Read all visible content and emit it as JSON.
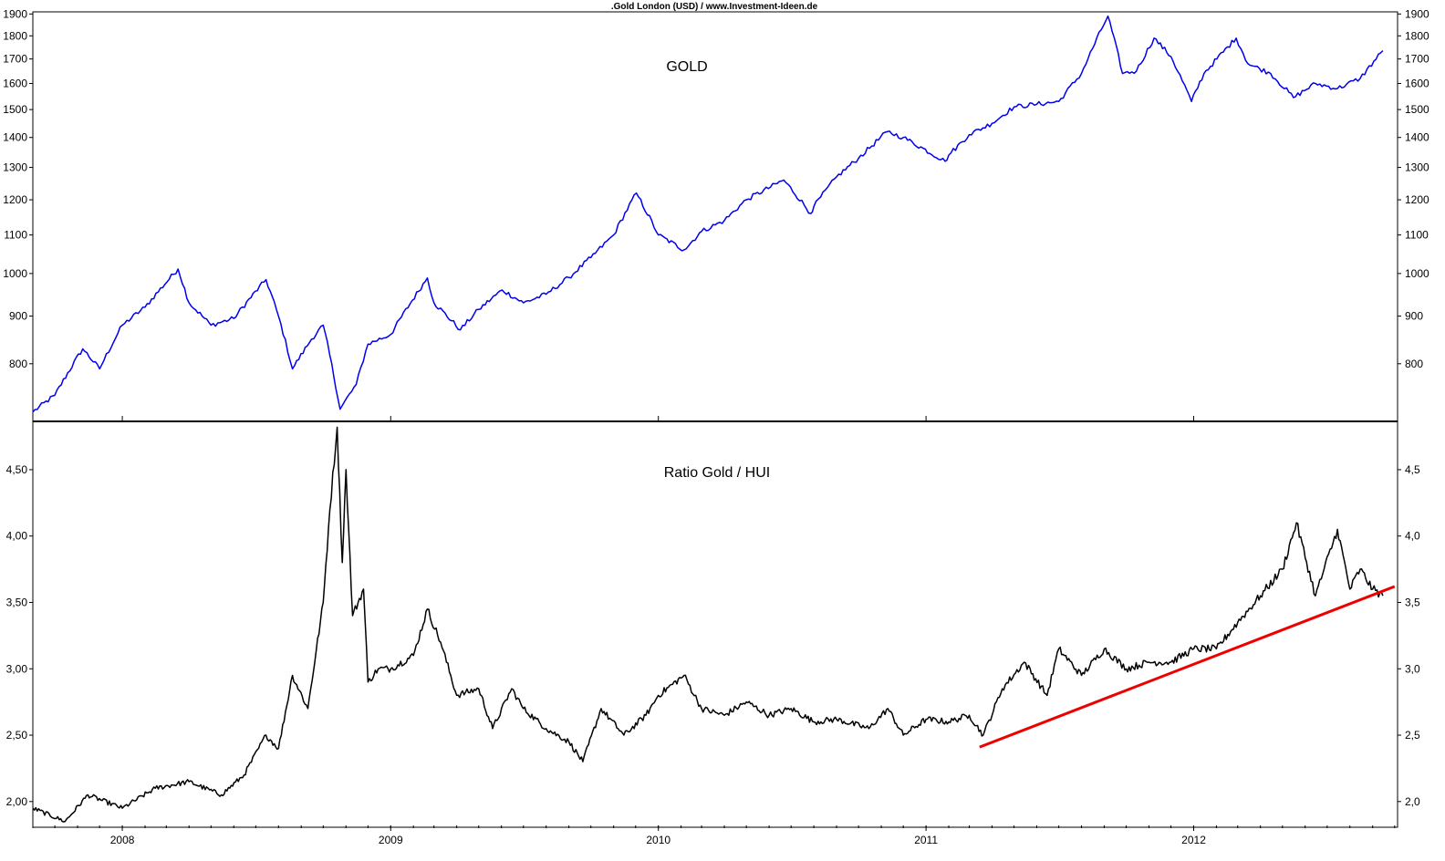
{
  "header": {
    "title": ".Gold London (USD) / www.Investment-Ideen.de"
  },
  "chart_data": [
    {
      "type": "line",
      "title": "GOLD",
      "y_scale": "log",
      "ylim": [
        700,
        1910
      ],
      "y_ticks": [
        "800",
        "900",
        "1000",
        "1100",
        "1200",
        "1300",
        "1400",
        "1500",
        "1600",
        "1700",
        "1800",
        "1900"
      ],
      "y_tick_values": [
        800,
        900,
        1000,
        1100,
        1200,
        1300,
        1400,
        1500,
        1600,
        1700,
        1800,
        1900
      ],
      "colors": {
        "series": "#0000ee"
      },
      "series": [
        {
          "x": [
            "2007-09-01",
            "2007-10-01",
            "2007-11-08",
            "2007-12-01",
            "2008-01-01",
            "2008-02-01",
            "2008-03-17",
            "2008-04-01",
            "2008-05-01",
            "2008-06-01",
            "2008-07-15",
            "2008-08-01",
            "2008-08-20",
            "2008-09-15",
            "2008-10-01",
            "2008-10-24",
            "2008-11-15",
            "2008-12-01",
            "2009-01-01",
            "2009-02-20",
            "2009-03-01",
            "2009-04-06",
            "2009-05-01",
            "2009-06-02",
            "2009-07-01",
            "2009-08-01",
            "2009-09-01",
            "2009-10-01",
            "2009-11-01",
            "2009-12-02",
            "2010-01-01",
            "2010-02-05",
            "2010-03-01",
            "2010-04-01",
            "2010-05-01",
            "2010-06-21",
            "2010-07-28",
            "2010-08-01",
            "2010-09-01",
            "2010-10-01",
            "2010-11-09",
            "2010-12-01",
            "2011-01-27",
            "2011-02-01",
            "2011-03-01",
            "2011-04-01",
            "2011-05-01",
            "2011-06-01",
            "2011-07-01",
            "2011-08-01",
            "2011-09-06",
            "2011-09-26",
            "2011-10-15",
            "2011-11-08",
            "2011-12-01",
            "2011-12-29",
            "2012-01-15",
            "2012-02-28",
            "2012-03-15",
            "2012-04-15",
            "2012-05-16",
            "2012-06-15",
            "2012-07-15",
            "2012-08-15",
            "2012-09-15"
          ],
          "values": [
            710,
            740,
            830,
            790,
            880,
            920,
            1011,
            930,
            880,
            895,
            985,
            900,
            790,
            850,
            880,
            715,
            760,
            840,
            860,
            989,
            930,
            870,
            915,
            960,
            930,
            950,
            990,
            1040,
            1100,
            1220,
            1100,
            1060,
            1110,
            1140,
            1200,
            1260,
            1160,
            1180,
            1270,
            1330,
            1420,
            1400,
            1320,
            1340,
            1410,
            1450,
            1510,
            1520,
            1530,
            1640,
            1890,
            1640,
            1650,
            1790,
            1710,
            1530,
            1640,
            1790,
            1680,
            1640,
            1545,
            1600,
            1580,
            1620,
            1735
          ]
        }
      ]
    },
    {
      "type": "line",
      "title": "Ratio Gold / HUI",
      "ylim": [
        1.82,
        4.85
      ],
      "y_ticks_left": [
        "2,00",
        "2,50",
        "3,00",
        "3,50",
        "4,00",
        "4,50"
      ],
      "y_ticks_right": [
        "2,0",
        "2,5",
        "3,0",
        "3,5",
        "4,0",
        "4,5"
      ],
      "y_tick_values": [
        2.0,
        2.5,
        3.0,
        3.5,
        4.0,
        4.5
      ],
      "colors": {
        "series": "#000000",
        "trendline": "#ee0000"
      },
      "series": [
        {
          "x": [
            "2007-09-01",
            "2007-10-15",
            "2007-11-15",
            "2008-01-01",
            "2008-02-15",
            "2008-04-01",
            "2008-05-15",
            "2008-06-15",
            "2008-07-15",
            "2008-08-01",
            "2008-08-20",
            "2008-09-10",
            "2008-10-01",
            "2008-10-10",
            "2008-10-20",
            "2008-10-27",
            "2008-11-01",
            "2008-11-10",
            "2008-11-25",
            "2008-12-01",
            "2008-12-15",
            "2009-01-01",
            "2009-02-01",
            "2009-02-20",
            "2009-03-10",
            "2009-04-01",
            "2009-05-01",
            "2009-05-20",
            "2009-06-15",
            "2009-07-01",
            "2009-08-01",
            "2009-09-01",
            "2009-09-20",
            "2009-10-15",
            "2009-11-15",
            "2009-12-15",
            "2010-01-01",
            "2010-02-05",
            "2010-03-01",
            "2010-04-01",
            "2010-05-01",
            "2010-06-01",
            "2010-07-01",
            "2010-08-01",
            "2010-09-01",
            "2010-10-15",
            "2010-11-10",
            "2010-12-01",
            "2011-01-01",
            "2011-02-01",
            "2011-03-01",
            "2011-03-20",
            "2011-04-15",
            "2011-05-15",
            "2011-06-15",
            "2011-07-01",
            "2011-08-01",
            "2011-09-01",
            "2011-10-01",
            "2011-11-01",
            "2011-12-01",
            "2012-01-01",
            "2012-02-01",
            "2012-03-01",
            "2012-04-01",
            "2012-05-01",
            "2012-05-20",
            "2012-06-15",
            "2012-07-15",
            "2012-08-01",
            "2012-08-15",
            "2012-09-01",
            "2012-09-15"
          ],
          "values": [
            1.95,
            1.85,
            2.05,
            1.95,
            2.1,
            2.15,
            2.05,
            2.2,
            2.5,
            2.4,
            2.95,
            2.7,
            3.5,
            4.2,
            4.82,
            3.8,
            4.5,
            3.4,
            3.6,
            2.9,
            3.0,
            3.0,
            3.1,
            3.45,
            3.2,
            2.8,
            2.85,
            2.55,
            2.85,
            2.7,
            2.55,
            2.45,
            2.3,
            2.7,
            2.5,
            2.65,
            2.8,
            2.95,
            2.7,
            2.65,
            2.75,
            2.65,
            2.7,
            2.6,
            2.62,
            2.55,
            2.7,
            2.5,
            2.62,
            2.6,
            2.65,
            2.5,
            2.85,
            3.05,
            2.8,
            3.15,
            2.95,
            3.15,
            3.0,
            3.05,
            3.05,
            3.15,
            3.15,
            3.35,
            3.55,
            3.75,
            4.1,
            3.55,
            4.05,
            3.6,
            3.75,
            3.6,
            3.55
          ]
        }
      ],
      "trendline": {
        "x": [
          "2011-03-15",
          "2012-10-01"
        ],
        "values": [
          2.41,
          3.62
        ]
      }
    }
  ],
  "x_axis": {
    "range": [
      "2007-09-01",
      "2012-10-05"
    ],
    "ticks": [
      {
        "label": "2008",
        "date": "2008-01-01"
      },
      {
        "label": "2009",
        "date": "2009-01-01"
      },
      {
        "label": "2010",
        "date": "2010-01-01"
      },
      {
        "label": "2011",
        "date": "2011-01-01"
      },
      {
        "label": "2012",
        "date": "2012-01-01"
      }
    ]
  }
}
